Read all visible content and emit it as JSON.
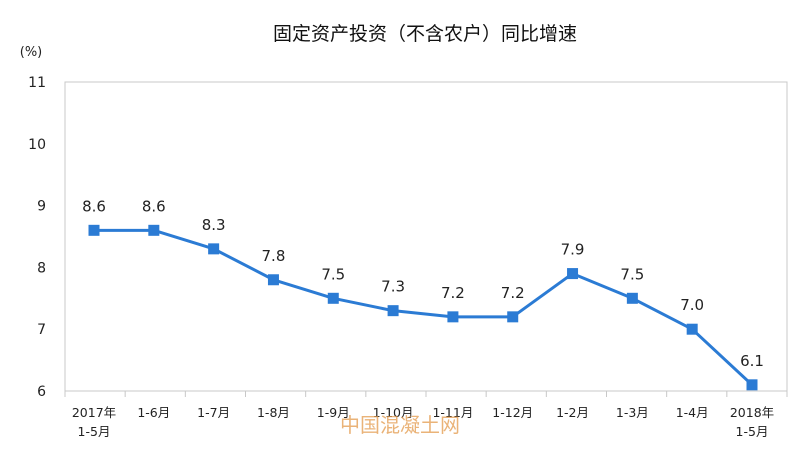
{
  "chart_data": {
    "type": "line",
    "title": "固定资产投资（不含农户）同比增速",
    "unit_label": "(%)",
    "ylim": [
      6,
      11
    ],
    "yticks": [
      "11",
      "10",
      "9",
      "8",
      "7",
      "6"
    ],
    "categories": [
      [
        "2017年",
        "1-5月"
      ],
      [
        "1-6月"
      ],
      [
        "1-7月"
      ],
      [
        "1-8月"
      ],
      [
        "1-9月"
      ],
      [
        "1-10月"
      ],
      [
        "1-11月"
      ],
      [
        "1-12月"
      ],
      [
        "1-2月"
      ],
      [
        "1-3月"
      ],
      [
        "1-4月"
      ],
      [
        "2018年",
        "1-5月"
      ]
    ],
    "series": [
      {
        "values": [
          8.6,
          8.6,
          8.3,
          7.8,
          7.5,
          7.3,
          7.2,
          7.2,
          7.9,
          7.5,
          7.0,
          6.1
        ],
        "labels": [
          "8.6",
          "8.6",
          "8.3",
          "7.8",
          "7.5",
          "7.3",
          "7.2",
          "7.2",
          "7.9",
          "7.5",
          "7.0",
          "6.1"
        ],
        "color": "#2b7bd4"
      }
    ],
    "grid": false,
    "legend": "none"
  },
  "watermark": "中国混凝土网"
}
